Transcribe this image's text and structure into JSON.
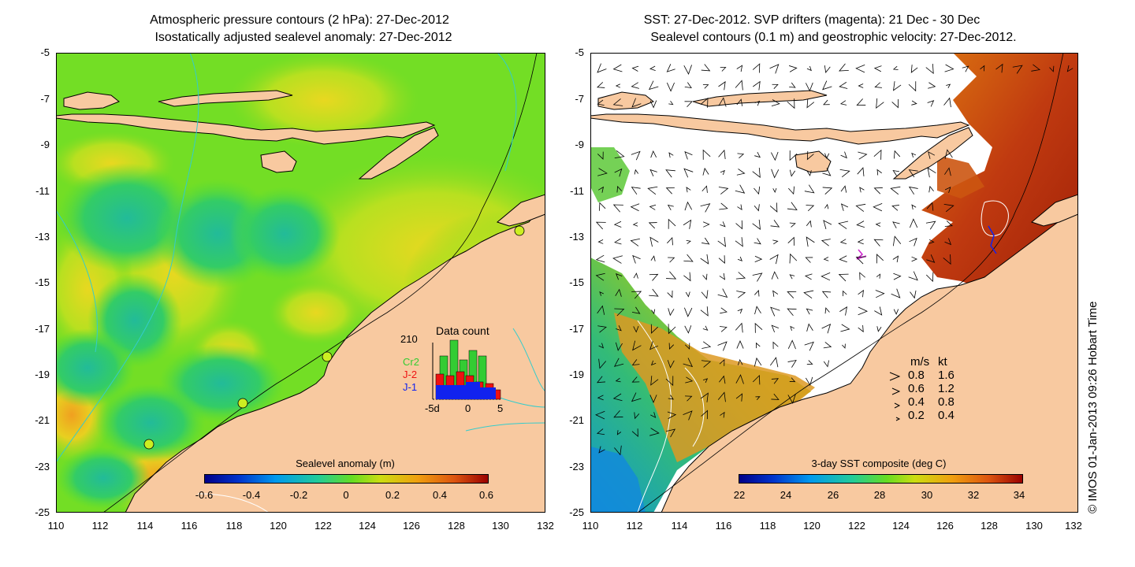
{
  "left_panel": {
    "title_line1": "Atmospheric pressure contours (2 hPa): 27-Dec-2012",
    "title_line2": "Isostatically adjusted sealevel anomaly: 27-Dec-2012",
    "colorbar_title": "Sealevel anomaly (m)",
    "colorbar_ticks": [
      "-0.6",
      "-0.4",
      "-0.2",
      "0",
      "0.2",
      "0.4",
      "0.6"
    ],
    "inset": {
      "title": "Data count",
      "ymax_label": "210",
      "series_labels": [
        "Cr2",
        "J-2",
        "J-1"
      ],
      "series_colors": [
        "#33cc33",
        "#ee1111",
        "#1122ee"
      ],
      "x_ticks": [
        "-5d",
        "0",
        "5"
      ]
    }
  },
  "right_panel": {
    "title_line1": "SST: 27-Dec-2012. SVP drifters (magenta): 21 Dec - 30 Dec",
    "title_line2": "Sealevel contours (0.1 m) and geostrophic velocity: 27-Dec-2012.",
    "colorbar_title": "3-day SST composite (deg C)",
    "colorbar_ticks": [
      "22",
      "24",
      "26",
      "28",
      "30",
      "32",
      "34"
    ],
    "velocity_legend": {
      "header_ms": "m/s",
      "header_kt": "kt",
      "rows": [
        {
          "ms": "0.8",
          "kt": "1.6"
        },
        {
          "ms": "0.6",
          "kt": "1.2"
        },
        {
          "ms": "0.4",
          "kt": "0.8"
        },
        {
          "ms": "0.2",
          "kt": "0.4"
        }
      ]
    }
  },
  "axes": {
    "x_ticks": [
      "110",
      "112",
      "114",
      "116",
      "118",
      "120",
      "122",
      "124",
      "126",
      "128",
      "130",
      "132"
    ],
    "y_ticks": [
      "-5",
      "-7",
      "-9",
      "-11",
      "-13",
      "-15",
      "-17",
      "-19",
      "-21",
      "-23",
      "-25"
    ]
  },
  "credit": "© IMOS 01-Jan-2013 09:26 Hobart Time",
  "colors": {
    "land": "#f8c9a0",
    "sea_anomaly_base": "#66dd22",
    "sea_white": "#ffffff",
    "sst_warm": "#c04010",
    "sst_cool": "#22aa88"
  }
}
